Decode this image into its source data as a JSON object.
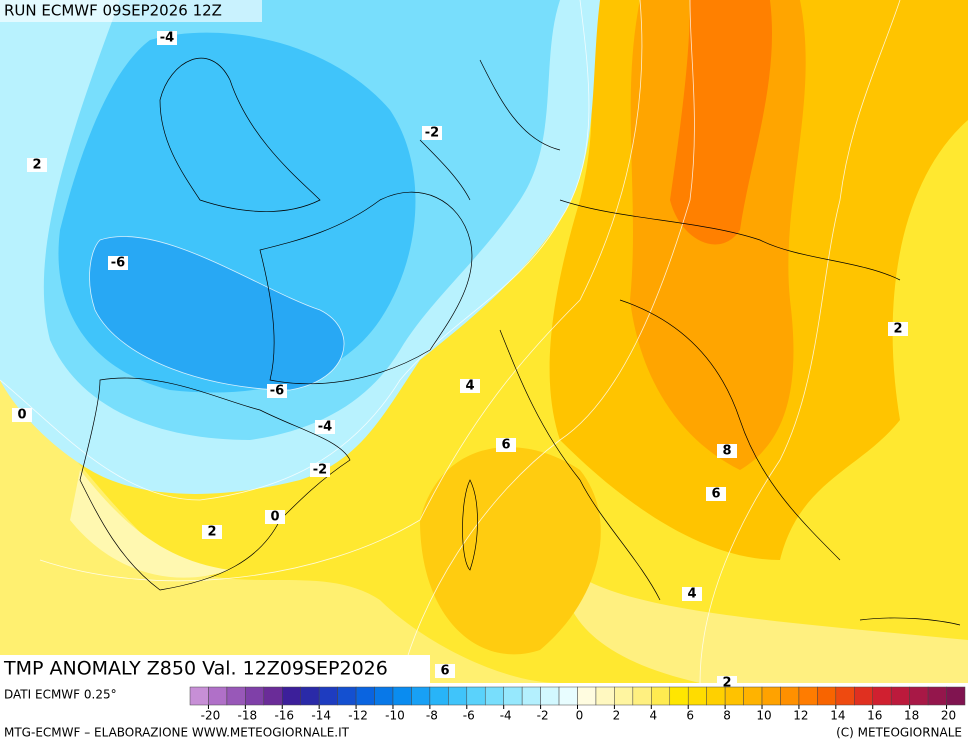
{
  "header": {
    "run": "RUN ECMWF 09SEP2026 12Z"
  },
  "map": {
    "title": "TMP ANOMALY Z850 Val. 12Z09SEP2026",
    "contour_labels": [
      "-4",
      "-2",
      "2",
      "-6",
      "-6",
      "-4",
      "-2",
      "0",
      "2",
      "0",
      "4",
      "6",
      "8",
      "6",
      "4",
      "2",
      "2",
      "6"
    ]
  },
  "footer": {
    "source": "DATI ECMWF 0.25°",
    "credits": "MTG-ECMWF – ELABORAZIONE WWW.METEOGIORNALE.IT",
    "copyright": "(C) METEOGIORNALE"
  },
  "colorbar": {
    "ticks": [
      -20,
      -18,
      -16,
      -14,
      -12,
      -10,
      -8,
      -6,
      -4,
      -2,
      0,
      2,
      4,
      6,
      8,
      10,
      12,
      14,
      16,
      18,
      20
    ],
    "colors": [
      "#c78fd6",
      "#b070c8",
      "#9858b8",
      "#7f40a8",
      "#6a2c98",
      "#3c1f9a",
      "#2a2aa8",
      "#1e3cc0",
      "#1450d0",
      "#0a64e0",
      "#0878e8",
      "#0a8cf0",
      "#18a0f5",
      "#28b4f8",
      "#40c4fa",
      "#5ad2fb",
      "#78defc",
      "#96e8fd",
      "#b4f0fe",
      "#d2f8ff",
      "#e8fdff",
      "#fffce0",
      "#fff8c0",
      "#fff5a0",
      "#fff080",
      "#ffeb50",
      "#ffe600",
      "#ffdc00",
      "#ffd000",
      "#ffc200",
      "#ffb300",
      "#ffa200",
      "#ff9000",
      "#ff7c00",
      "#f86400",
      "#ee4a10",
      "#e03020",
      "#d02030",
      "#bc1a3c",
      "#a81846",
      "#94164c",
      "#801450"
    ]
  }
}
